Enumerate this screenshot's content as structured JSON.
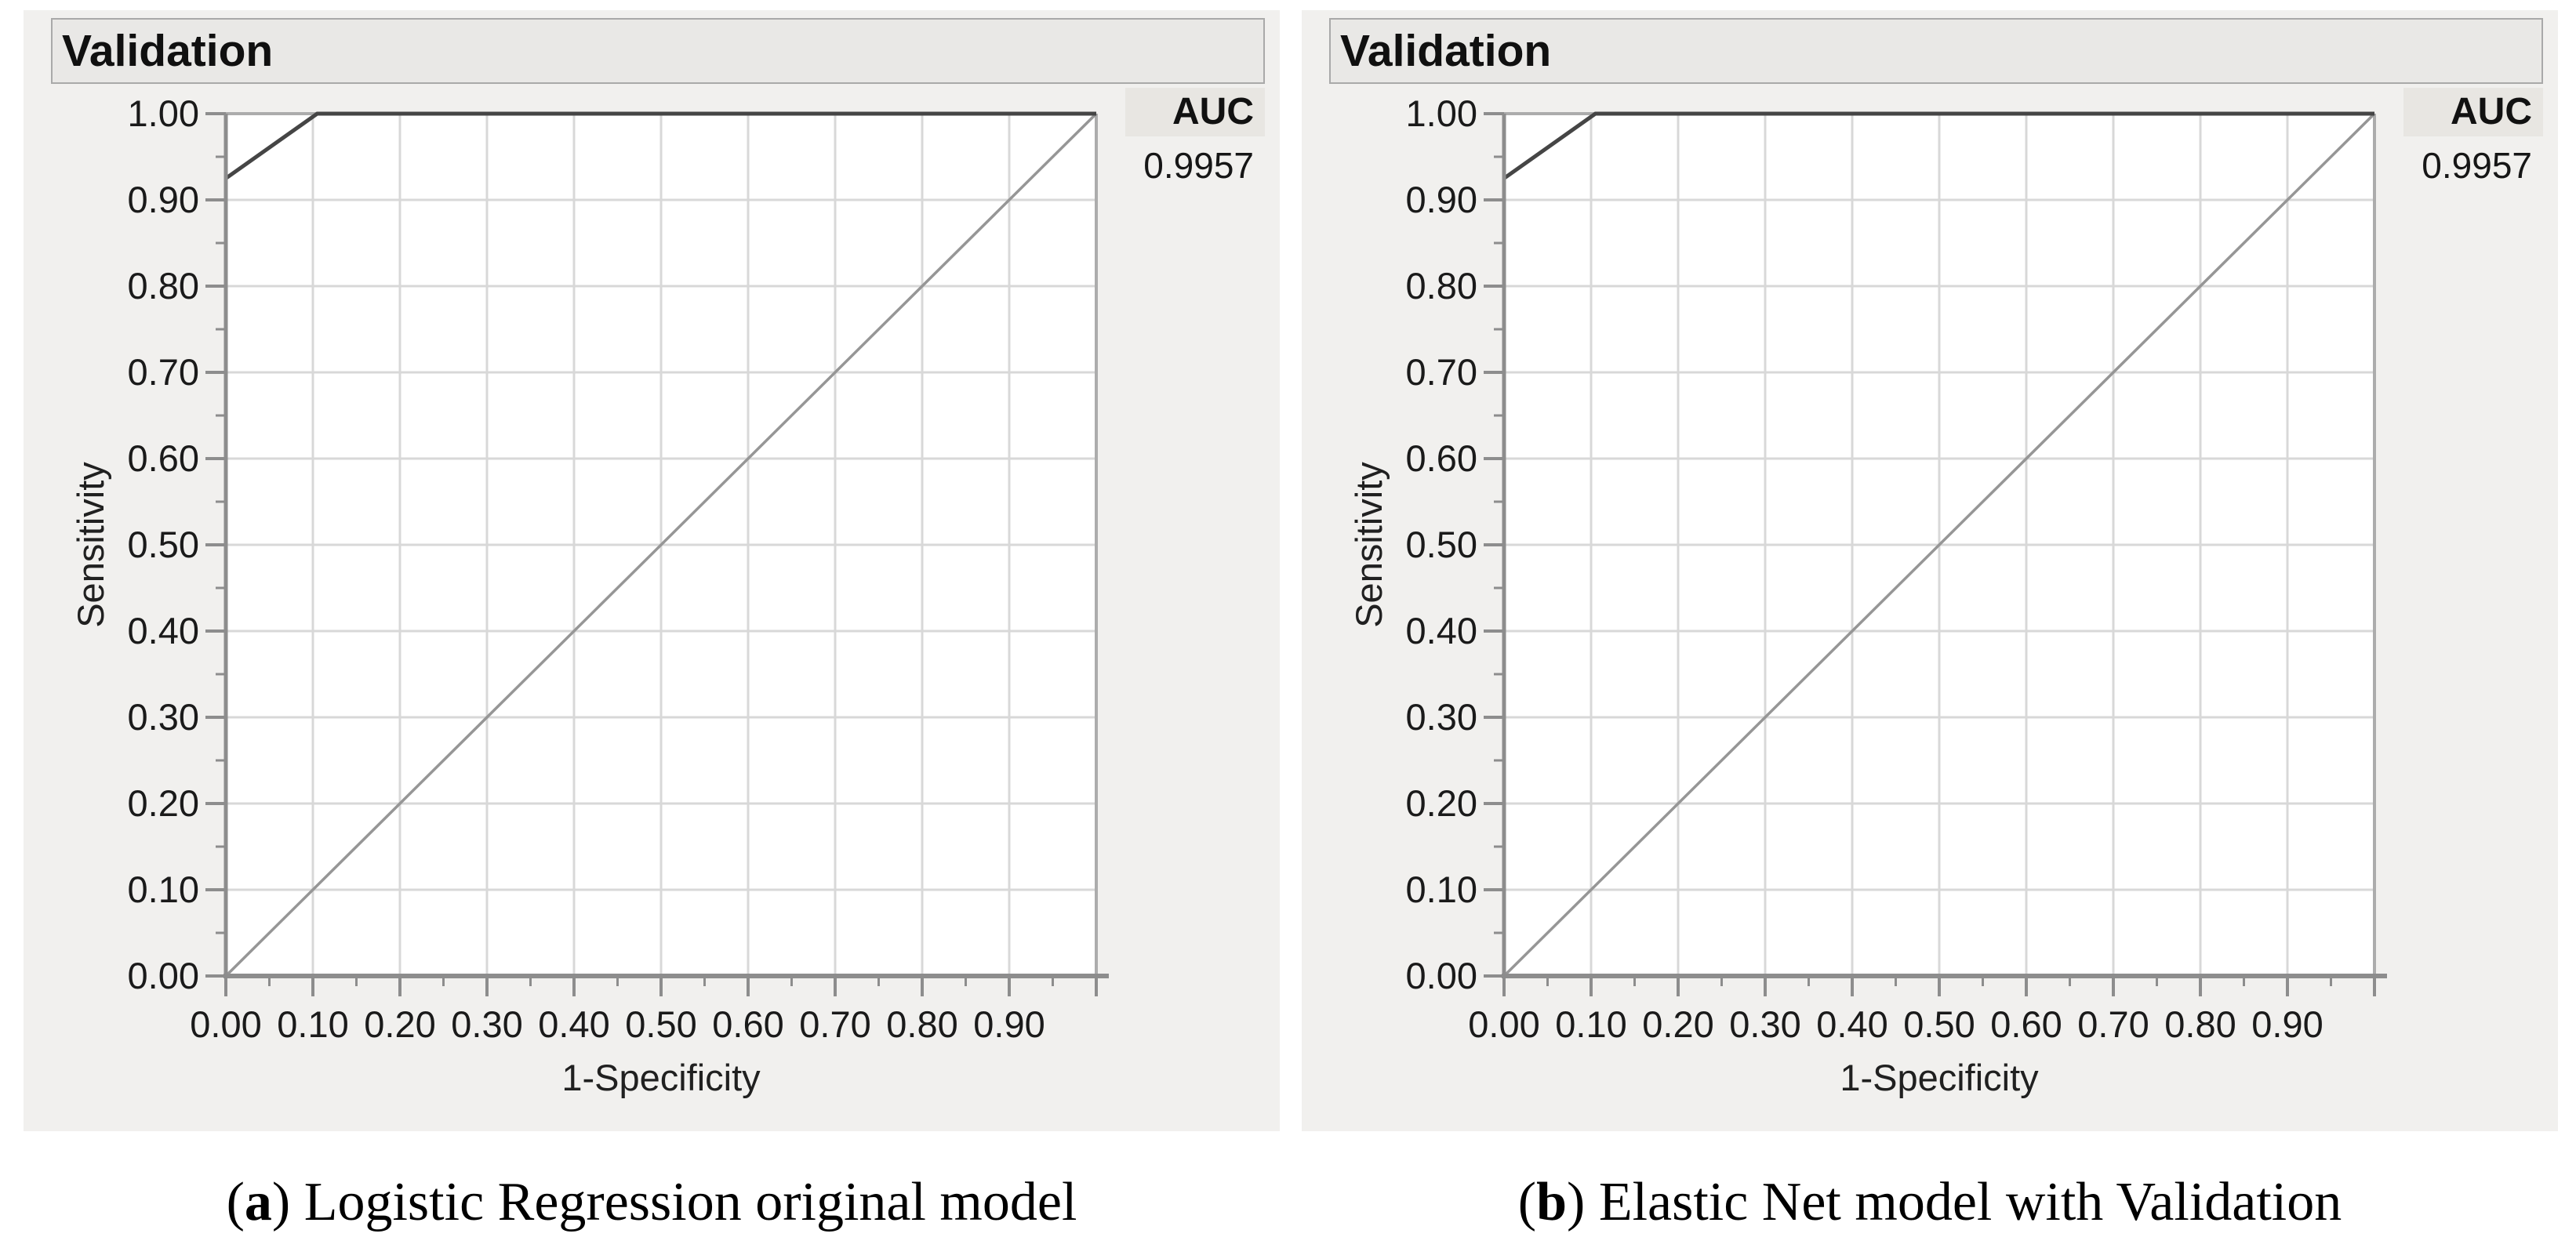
{
  "panels": [
    {
      "header": "Validation",
      "auc_label": "AUC",
      "auc_value": "0.9957",
      "xlabel": "1-Specificity",
      "ylabel": "Sensitivity",
      "caption": {
        "prefix": "(",
        "letter": "a",
        "suffix": ")",
        "text": " Logistic Regression original model"
      }
    },
    {
      "header": "Validation",
      "auc_label": "AUC",
      "auc_value": "0.9957",
      "xlabel": "1-Specificity",
      "ylabel": "Sensitivity",
      "caption": {
        "prefix": "(",
        "letter": "b",
        "suffix": ")",
        "text": " Elastic Net model with Validation"
      }
    }
  ],
  "chart_data": [
    {
      "type": "line",
      "title": "Validation",
      "subtitle": "ROC curve, Logistic Regression original model",
      "xlabel": "1-Specificity",
      "ylabel": "Sensitivity",
      "xlim": [
        0,
        1
      ],
      "ylim": [
        0,
        1
      ],
      "grid": true,
      "legend_position": "none",
      "x_tick_values": [
        0,
        0.1,
        0.2,
        0.3,
        0.4,
        0.5,
        0.6,
        0.7,
        0.8,
        0.9
      ],
      "x_tick_labels": [
        "0.00",
        "0.10",
        "0.20",
        "0.30",
        "0.40",
        "0.50",
        "0.60",
        "0.70",
        "0.80",
        "0.90"
      ],
      "y_tick_values": [
        0,
        0.1,
        0.2,
        0.3,
        0.4,
        0.5,
        0.6,
        0.7,
        0.8,
        0.9,
        1.0
      ],
      "y_tick_labels": [
        "0.00",
        "0.10",
        "0.20",
        "0.30",
        "0.40",
        "0.50",
        "0.60",
        "0.70",
        "0.80",
        "0.90",
        "1.00"
      ],
      "minor_tick_step": 0.05,
      "series": [
        {
          "name": "Chance diagonal",
          "role": "diagonal",
          "points": [
            [
              0,
              0
            ],
            [
              1.0,
              1.0
            ]
          ]
        },
        {
          "name": "ROC curve",
          "role": "curve",
          "points": [
            [
              0,
              0
            ],
            [
              0,
              0.925
            ],
            [
              0.105,
              1.0
            ],
            [
              1.0,
              1.0
            ]
          ]
        }
      ],
      "annotations": [
        {
          "label": "AUC",
          "value": 0.9957
        }
      ]
    },
    {
      "type": "line",
      "title": "Validation",
      "subtitle": "ROC curve, Elastic Net model with Validation",
      "xlabel": "1-Specificity",
      "ylabel": "Sensitivity",
      "xlim": [
        0,
        1
      ],
      "ylim": [
        0,
        1
      ],
      "grid": true,
      "legend_position": "none",
      "x_tick_values": [
        0,
        0.1,
        0.2,
        0.3,
        0.4,
        0.5,
        0.6,
        0.7,
        0.8,
        0.9
      ],
      "x_tick_labels": [
        "0.00",
        "0.10",
        "0.20",
        "0.30",
        "0.40",
        "0.50",
        "0.60",
        "0.70",
        "0.80",
        "0.90"
      ],
      "y_tick_values": [
        0,
        0.1,
        0.2,
        0.3,
        0.4,
        0.5,
        0.6,
        0.7,
        0.8,
        0.9,
        1.0
      ],
      "y_tick_labels": [
        "0.00",
        "0.10",
        "0.20",
        "0.30",
        "0.40",
        "0.50",
        "0.60",
        "0.70",
        "0.80",
        "0.90",
        "1.00"
      ],
      "minor_tick_step": 0.05,
      "series": [
        {
          "name": "Chance diagonal",
          "role": "diagonal",
          "points": [
            [
              0,
              0
            ],
            [
              1.0,
              1.0
            ]
          ]
        },
        {
          "name": "ROC curve",
          "role": "curve",
          "points": [
            [
              0,
              0
            ],
            [
              0,
              0.925
            ],
            [
              0.105,
              1.0
            ],
            [
              1.0,
              1.0
            ]
          ]
        }
      ],
      "annotations": [
        {
          "label": "AUC",
          "value": 0.9957
        }
      ]
    }
  ],
  "style": {
    "panel_bg": "#f1f0ee",
    "header_bg": "#e9e8e6",
    "header_border": "#a9a9a9",
    "auc_box_bg": "#e8e6e2",
    "plot_bg": "#ffffff",
    "grid_color": "#d8d8d8",
    "plot_border_color": "#acacac",
    "axis_color": "#8d8d8d",
    "curve_color": "#454545",
    "diagonal_color": "#969696",
    "text_color": "#1a1a1a"
  }
}
